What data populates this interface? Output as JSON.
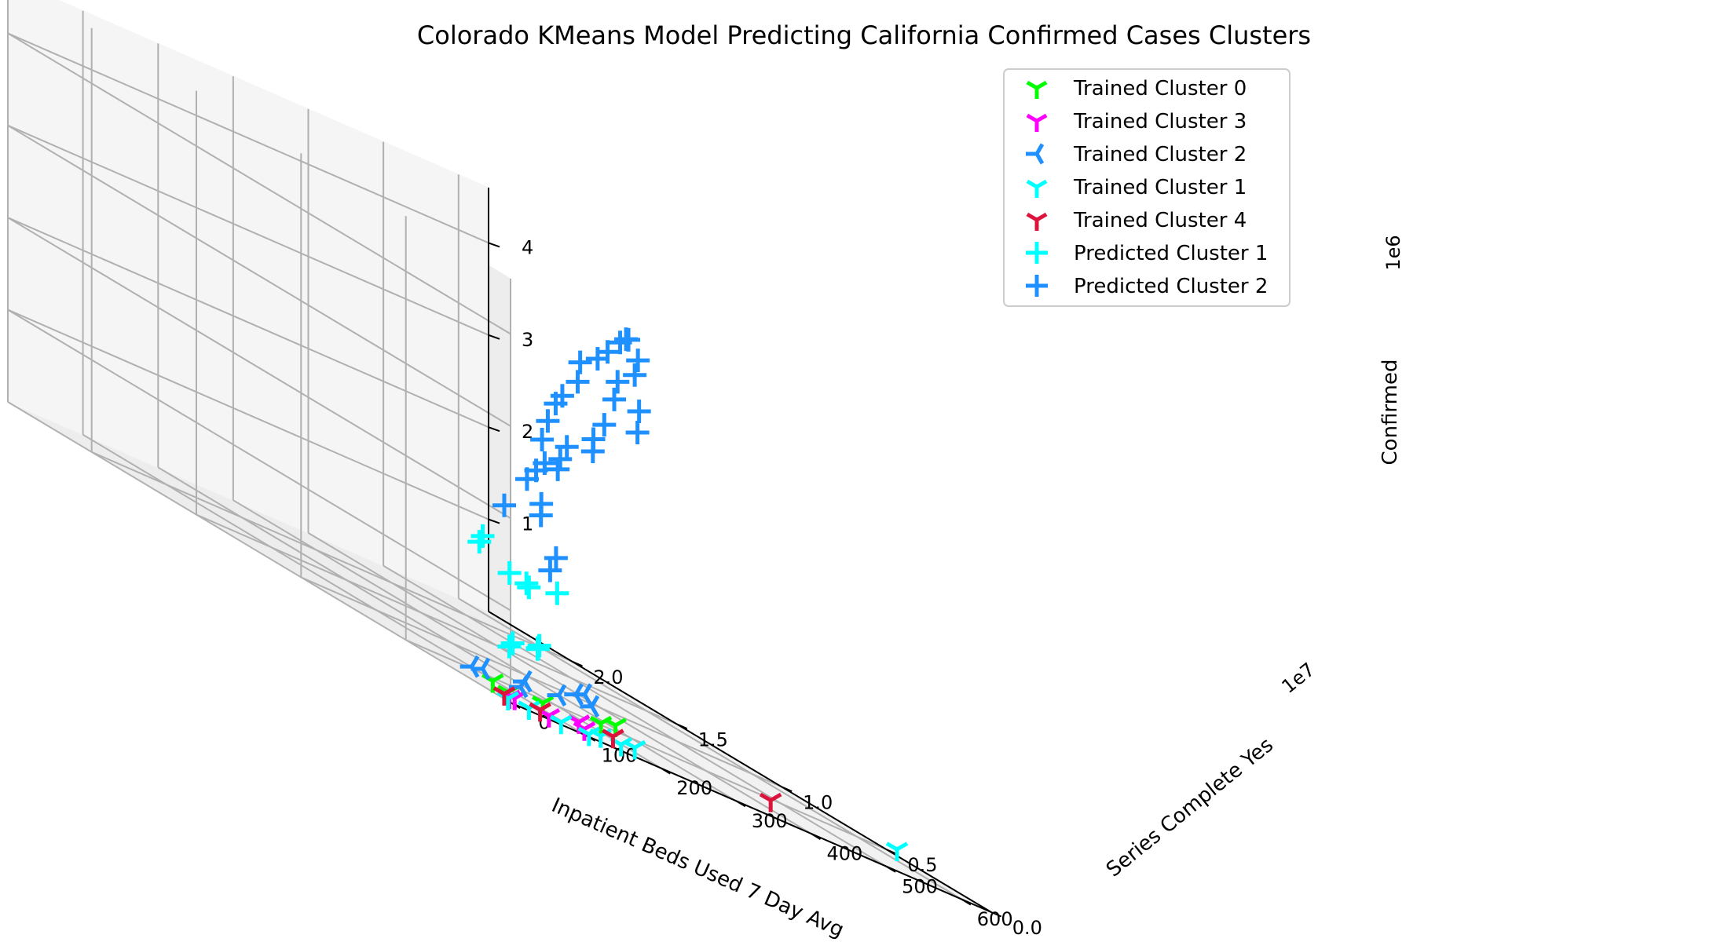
{
  "chart_data": {
    "type": "scatter",
    "projection": "3d",
    "title": "Colorado KMeans Model Predicting California Confirmed Cases Clusters",
    "xlabel": "Inpatient Beds Used 7 Day Avg",
    "ylabel": "Series Complete Yes",
    "zlabel": "Confirmed",
    "x_ticks": [
      "0",
      "100",
      "200",
      "300",
      "400",
      "500",
      "600"
    ],
    "y_ticks": [
      "0.0",
      "0.5",
      "1.0",
      "1.5",
      "2.0"
    ],
    "y_offset": "1e7",
    "z_ticks": [
      "1",
      "2",
      "3",
      "4"
    ],
    "z_offset": "1e6",
    "xlim": [
      0,
      640
    ],
    "ylim": [
      0,
      24000000
    ],
    "zlim": [
      0,
      4600000
    ],
    "grid": true,
    "legend_position": "upper right",
    "series": [
      {
        "name": "Trained Cluster 0",
        "marker": "tri_down",
        "color": "#00ff00",
        "points": [
          [
            50,
            1900000,
            30000
          ],
          [
            60,
            3000000,
            40000
          ],
          [
            110,
            2400000,
            60000
          ],
          [
            190,
            2500000,
            110000
          ],
          [
            215,
            2700000,
            150000
          ]
        ]
      },
      {
        "name": "Trained Cluster 3",
        "marker": "tri_down",
        "color": "#ff00ff",
        "points": [
          [
            15,
            600000,
            30000
          ],
          [
            25,
            700000,
            40000
          ],
          [
            65,
            500000,
            20000
          ],
          [
            115,
            600000,
            40000
          ],
          [
            130,
            1400000,
            60000
          ]
        ]
      },
      {
        "name": "Trained Cluster 2",
        "marker": "tri_left",
        "color": "#1e90ff",
        "points": [
          [
            60,
            4000000,
            60000
          ],
          [
            80,
            4200000,
            80000
          ],
          [
            125,
            4000000,
            70000
          ],
          [
            175,
            5600000,
            90000
          ],
          [
            215,
            5400000,
            110000
          ],
          [
            270,
            5800000,
            130000
          ],
          [
            260,
            6200000,
            170000
          ],
          [
            280,
            6500000,
            200000
          ]
        ]
      },
      {
        "name": "Trained Cluster 1",
        "marker": "tri_down",
        "color": "#00ffff",
        "points": [
          [
            5,
            300000,
            20000
          ],
          [
            30,
            200000,
            20000
          ],
          [
            70,
            100000,
            20000
          ],
          [
            110,
            200000,
            20000
          ],
          [
            145,
            900000,
            30000
          ],
          [
            175,
            1000000,
            30000
          ],
          [
            210,
            1600000,
            40000
          ],
          [
            640,
            4500000,
            70000
          ]
        ]
      },
      {
        "name": "Trained Cluster 4",
        "marker": "tri_down",
        "color": "#dc143c",
        "points": [
          [
            25,
            1200000,
            20000
          ],
          [
            70,
            1100000,
            20000
          ],
          [
            195,
            2100000,
            40000
          ],
          [
            430,
            3000000,
            60000
          ]
        ]
      },
      {
        "name": "Predicted Cluster 1",
        "marker": "plus",
        "color": "#00ffff",
        "points": [
          [
            0,
            50000,
            1400000
          ],
          [
            30,
            200000,
            1330000
          ],
          [
            70,
            4000000,
            1450000
          ],
          [
            80,
            4200000,
            1520000
          ],
          [
            90,
            1000000,
            1370000
          ],
          [
            0,
            60000,
            600000
          ],
          [
            5,
            80000,
            650000
          ],
          [
            50,
            500000,
            700000
          ],
          [
            55,
            600000,
            730000
          ],
          [
            120,
            3000000,
            600000
          ],
          [
            300,
            10000000,
            1000000
          ]
        ]
      },
      {
        "name": "Predicted Cluster 2",
        "marker": "plus",
        "color": "#1e90ff",
        "points": [
          [
            0,
            300000,
            2100000
          ],
          [
            60,
            700000,
            2150000
          ],
          [
            80,
            1400000,
            2250000
          ],
          [
            100,
            2800000,
            2400000
          ],
          [
            140,
            3800000,
            2500000
          ],
          [
            180,
            4200000,
            2600000
          ],
          [
            200,
            4800000,
            2700000
          ],
          [
            220,
            5200000,
            2850000
          ],
          [
            90,
            1600000,
            2700000
          ],
          [
            120,
            2800000,
            2900000
          ],
          [
            150,
            3600000,
            3100000
          ],
          [
            180,
            4300000,
            3300000
          ],
          [
            200,
            4700000,
            3400000
          ],
          [
            240,
            5400000,
            3600000
          ],
          [
            260,
            6000000,
            3800000
          ],
          [
            300,
            6600000,
            3900000
          ],
          [
            330,
            7200000,
            4000000
          ],
          [
            360,
            7800000,
            3700000
          ],
          [
            350,
            7600000,
            3500000
          ],
          [
            320,
            7000000,
            3200000
          ],
          [
            300,
            6800000,
            3000000
          ],
          [
            200,
            5000000,
            1600000
          ],
          [
            220,
            6000000,
            1400000
          ],
          [
            420,
            9000000,
            3200000
          ],
          [
            450,
            10000000,
            3400000
          ],
          [
            500,
            12000000,
            3700000
          ],
          [
            560,
            14000000,
            3800000
          ],
          [
            600,
            16000000,
            3900000
          ],
          [
            620,
            17000000,
            3800000
          ],
          [
            500,
            14000000,
            2600000
          ],
          [
            380,
            8000000,
            4200000
          ]
        ]
      }
    ]
  }
}
